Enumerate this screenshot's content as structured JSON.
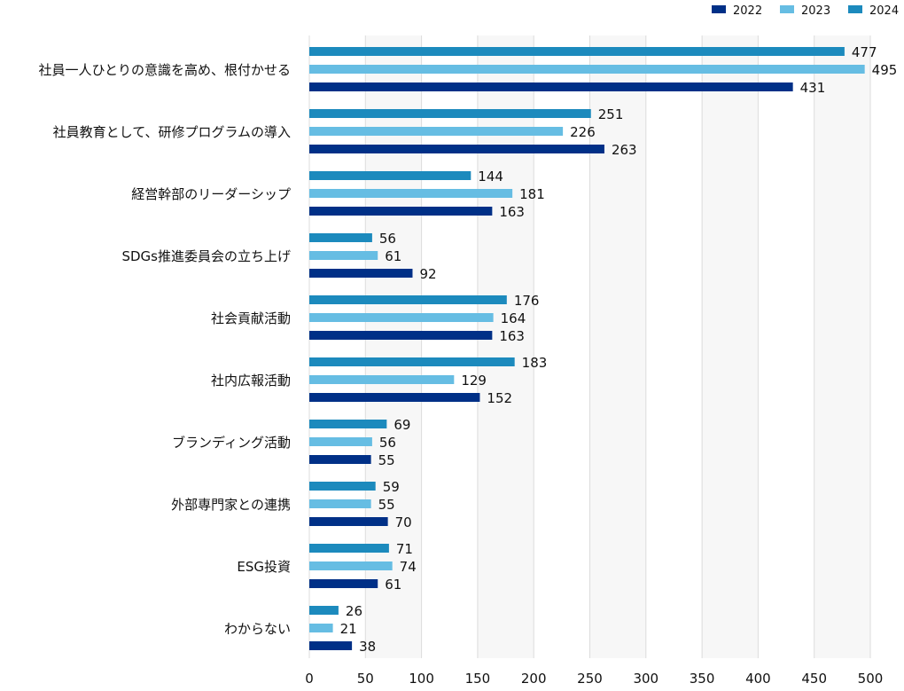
{
  "chart_data": {
    "type": "bar",
    "orientation": "horizontal",
    "categories": [
      "社員一人ひとりの意識を高め、根付かせる",
      "社員教育として、研修プログラムの導入",
      "経営幹部のリーダーシップ",
      "SDGs推進委員会の立ち上げ",
      "社会貢献活動",
      "社内広報活動",
      "ブランディング活動",
      "外部専門家との連携",
      "ESG投資",
      "わからない"
    ],
    "series": [
      {
        "name": "2022",
        "color": "#003087",
        "values": [
          431,
          263,
          163,
          92,
          163,
          152,
          55,
          70,
          61,
          38
        ]
      },
      {
        "name": "2023",
        "color": "#66bde3",
        "values": [
          495,
          226,
          181,
          61,
          164,
          129,
          56,
          55,
          74,
          21
        ]
      },
      {
        "name": "2024",
        "color": "#1c8abd",
        "values": [
          477,
          251,
          144,
          56,
          176,
          183,
          69,
          59,
          71,
          26
        ]
      }
    ],
    "xlim": [
      0,
      500
    ],
    "xticks": [
      0,
      50,
      100,
      150,
      200,
      250,
      300,
      350,
      400,
      450,
      500
    ],
    "grid": true,
    "legend": "top-right",
    "data_labels": true
  }
}
